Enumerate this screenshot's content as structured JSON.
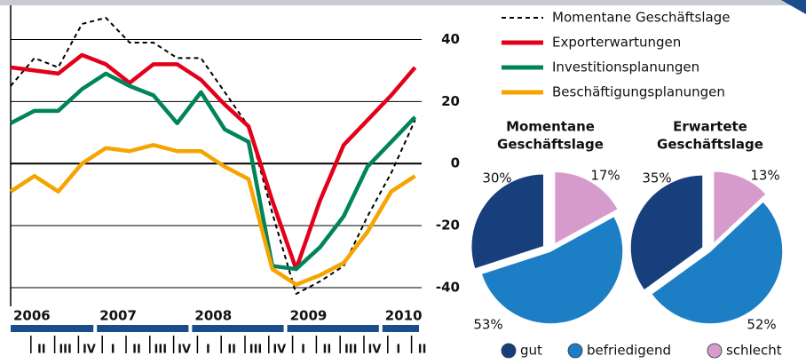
{
  "chart_data": [
    {
      "type": "line",
      "categories": [
        null,
        "II",
        "III",
        "IV",
        "I",
        "II",
        "III",
        "IV",
        "I",
        "II",
        "III",
        "IV",
        "I",
        "II",
        "III",
        "IV",
        "I",
        "II"
      ],
      "year_labels": [
        "2006",
        "2007",
        "2008",
        "2009",
        "2010"
      ],
      "series": [
        {
          "name": "Momentane Geschäftslage",
          "color": "#000000",
          "dashed": true,
          "values": [
            25,
            34,
            31,
            45,
            47,
            39,
            39,
            34,
            34,
            23,
            12,
            -16,
            -42,
            -38,
            -33,
            -17,
            -3,
            14
          ]
        },
        {
          "name": "Exporterwartungen",
          "color": "#e3001b",
          "dashed": false,
          "values": [
            31,
            30,
            29,
            35,
            32,
            26,
            32,
            32,
            27,
            19,
            12,
            -12,
            -34,
            -12,
            6,
            14,
            22,
            31
          ]
        },
        {
          "name": "Investitionsplanungen",
          "color": "#00845a",
          "dashed": false,
          "values": [
            13,
            17,
            17,
            24,
            29,
            25,
            22,
            13,
            23,
            11,
            7,
            -33,
            -34,
            -27,
            -17,
            -1,
            7,
            15
          ]
        },
        {
          "name": "Beschäftigungsplanungen",
          "color": "#f5a400",
          "dashed": false,
          "values": [
            -9,
            -4,
            -9,
            0,
            5,
            4,
            6,
            4,
            4,
            -1,
            -5,
            -34,
            -39,
            -36,
            -32,
            -22,
            -9,
            -4
          ]
        }
      ],
      "ylim": [
        -46,
        51
      ],
      "yticks": [
        -40,
        -20,
        0,
        20,
        40
      ],
      "grid": true
    },
    {
      "type": "pie",
      "title_lines": [
        "Momentane",
        "Geschäftslage"
      ],
      "categories": [
        "gut",
        "befriedigend",
        "schlecht"
      ],
      "colors": [
        "#173f7c",
        "#1c7fc6",
        "#d69bcb"
      ],
      "values": [
        30,
        53,
        17
      ],
      "value_labels": [
        "30%",
        "53%",
        "17%"
      ]
    },
    {
      "type": "pie",
      "title_lines": [
        "Erwartete",
        "Geschäftslage"
      ],
      "categories": [
        "gut",
        "befriedigend",
        "schlecht"
      ],
      "colors": [
        "#173f7c",
        "#1c7fc6",
        "#d69bcb"
      ],
      "values": [
        35,
        52,
        13
      ],
      "value_labels": [
        "35%",
        "52%",
        "13%"
      ]
    }
  ]
}
